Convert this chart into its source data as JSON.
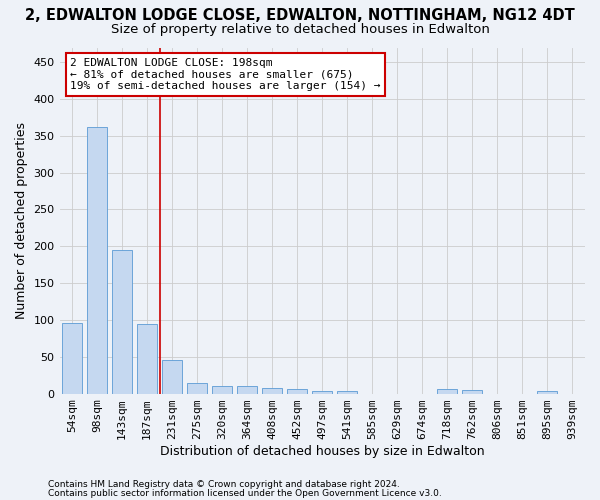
{
  "title": "2, EDWALTON LODGE CLOSE, EDWALTON, NOTTINGHAM, NG12 4DT",
  "subtitle": "Size of property relative to detached houses in Edwalton",
  "xlabel": "Distribution of detached houses by size in Edwalton",
  "ylabel": "Number of detached properties",
  "categories": [
    "54sqm",
    "98sqm",
    "143sqm",
    "187sqm",
    "231sqm",
    "275sqm",
    "320sqm",
    "364sqm",
    "408sqm",
    "452sqm",
    "497sqm",
    "541sqm",
    "585sqm",
    "629sqm",
    "674sqm",
    "718sqm",
    "762sqm",
    "806sqm",
    "851sqm",
    "895sqm",
    "939sqm"
  ],
  "values": [
    96,
    362,
    195,
    94,
    46,
    14,
    10,
    10,
    7,
    6,
    3,
    4,
    0,
    0,
    0,
    6,
    5,
    0,
    0,
    4,
    0
  ],
  "bar_color": "#c5d8f0",
  "bar_edge_color": "#5b9bd5",
  "vline_x": 3.5,
  "annotation_text": "2 EDWALTON LODGE CLOSE: 198sqm\n← 81% of detached houses are smaller (675)\n19% of semi-detached houses are larger (154) →",
  "annotation_box_color": "#ffffff",
  "annotation_box_edge_color": "#cc0000",
  "vline_color": "#cc0000",
  "grid_color": "#cccccc",
  "background_color": "#eef2f8",
  "footer_line1": "Contains HM Land Registry data © Crown copyright and database right 2024.",
  "footer_line2": "Contains public sector information licensed under the Open Government Licence v3.0.",
  "ylim": [
    0,
    470
  ],
  "yticks": [
    0,
    50,
    100,
    150,
    200,
    250,
    300,
    350,
    400,
    450
  ],
  "title_fontsize": 10.5,
  "subtitle_fontsize": 9.5,
  "axis_label_fontsize": 9,
  "tick_fontsize": 8,
  "annot_fontsize": 8
}
